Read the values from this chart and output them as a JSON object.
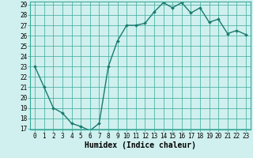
{
  "title": "",
  "xlabel": "Humidex (Indice chaleur)",
  "ylabel": "",
  "x_values": [
    0,
    1,
    2,
    3,
    4,
    5,
    6,
    7,
    8,
    9,
    10,
    11,
    12,
    13,
    14,
    15,
    16,
    17,
    18,
    19,
    20,
    21,
    22,
    23
  ],
  "y_values": [
    23,
    21,
    19,
    18.5,
    17.5,
    17.2,
    16.8,
    17.5,
    23,
    25.5,
    27,
    27,
    27.2,
    28.3,
    29.2,
    28.7,
    29.2,
    28.2,
    28.7,
    27.3,
    27.6,
    26.2,
    26.5,
    26.1
  ],
  "ylim": [
    17,
    29
  ],
  "yticks": [
    17,
    18,
    19,
    20,
    21,
    22,
    23,
    24,
    25,
    26,
    27,
    28,
    29
  ],
  "xlim": [
    -0.5,
    23.5
  ],
  "xticks": [
    0,
    1,
    2,
    3,
    4,
    5,
    6,
    7,
    8,
    9,
    10,
    11,
    12,
    13,
    14,
    15,
    16,
    17,
    18,
    19,
    20,
    21,
    22,
    23
  ],
  "line_color": "#1a7a6e",
  "marker_color": "#1a7a6e",
  "bg_color": "#cff0ee",
  "grid_color": "#3aa89a",
  "face_color": "#cff0ee",
  "xlabel_fontsize": 7,
  "tick_fontsize": 5.5,
  "linewidth": 1.0,
  "markersize": 2.0
}
